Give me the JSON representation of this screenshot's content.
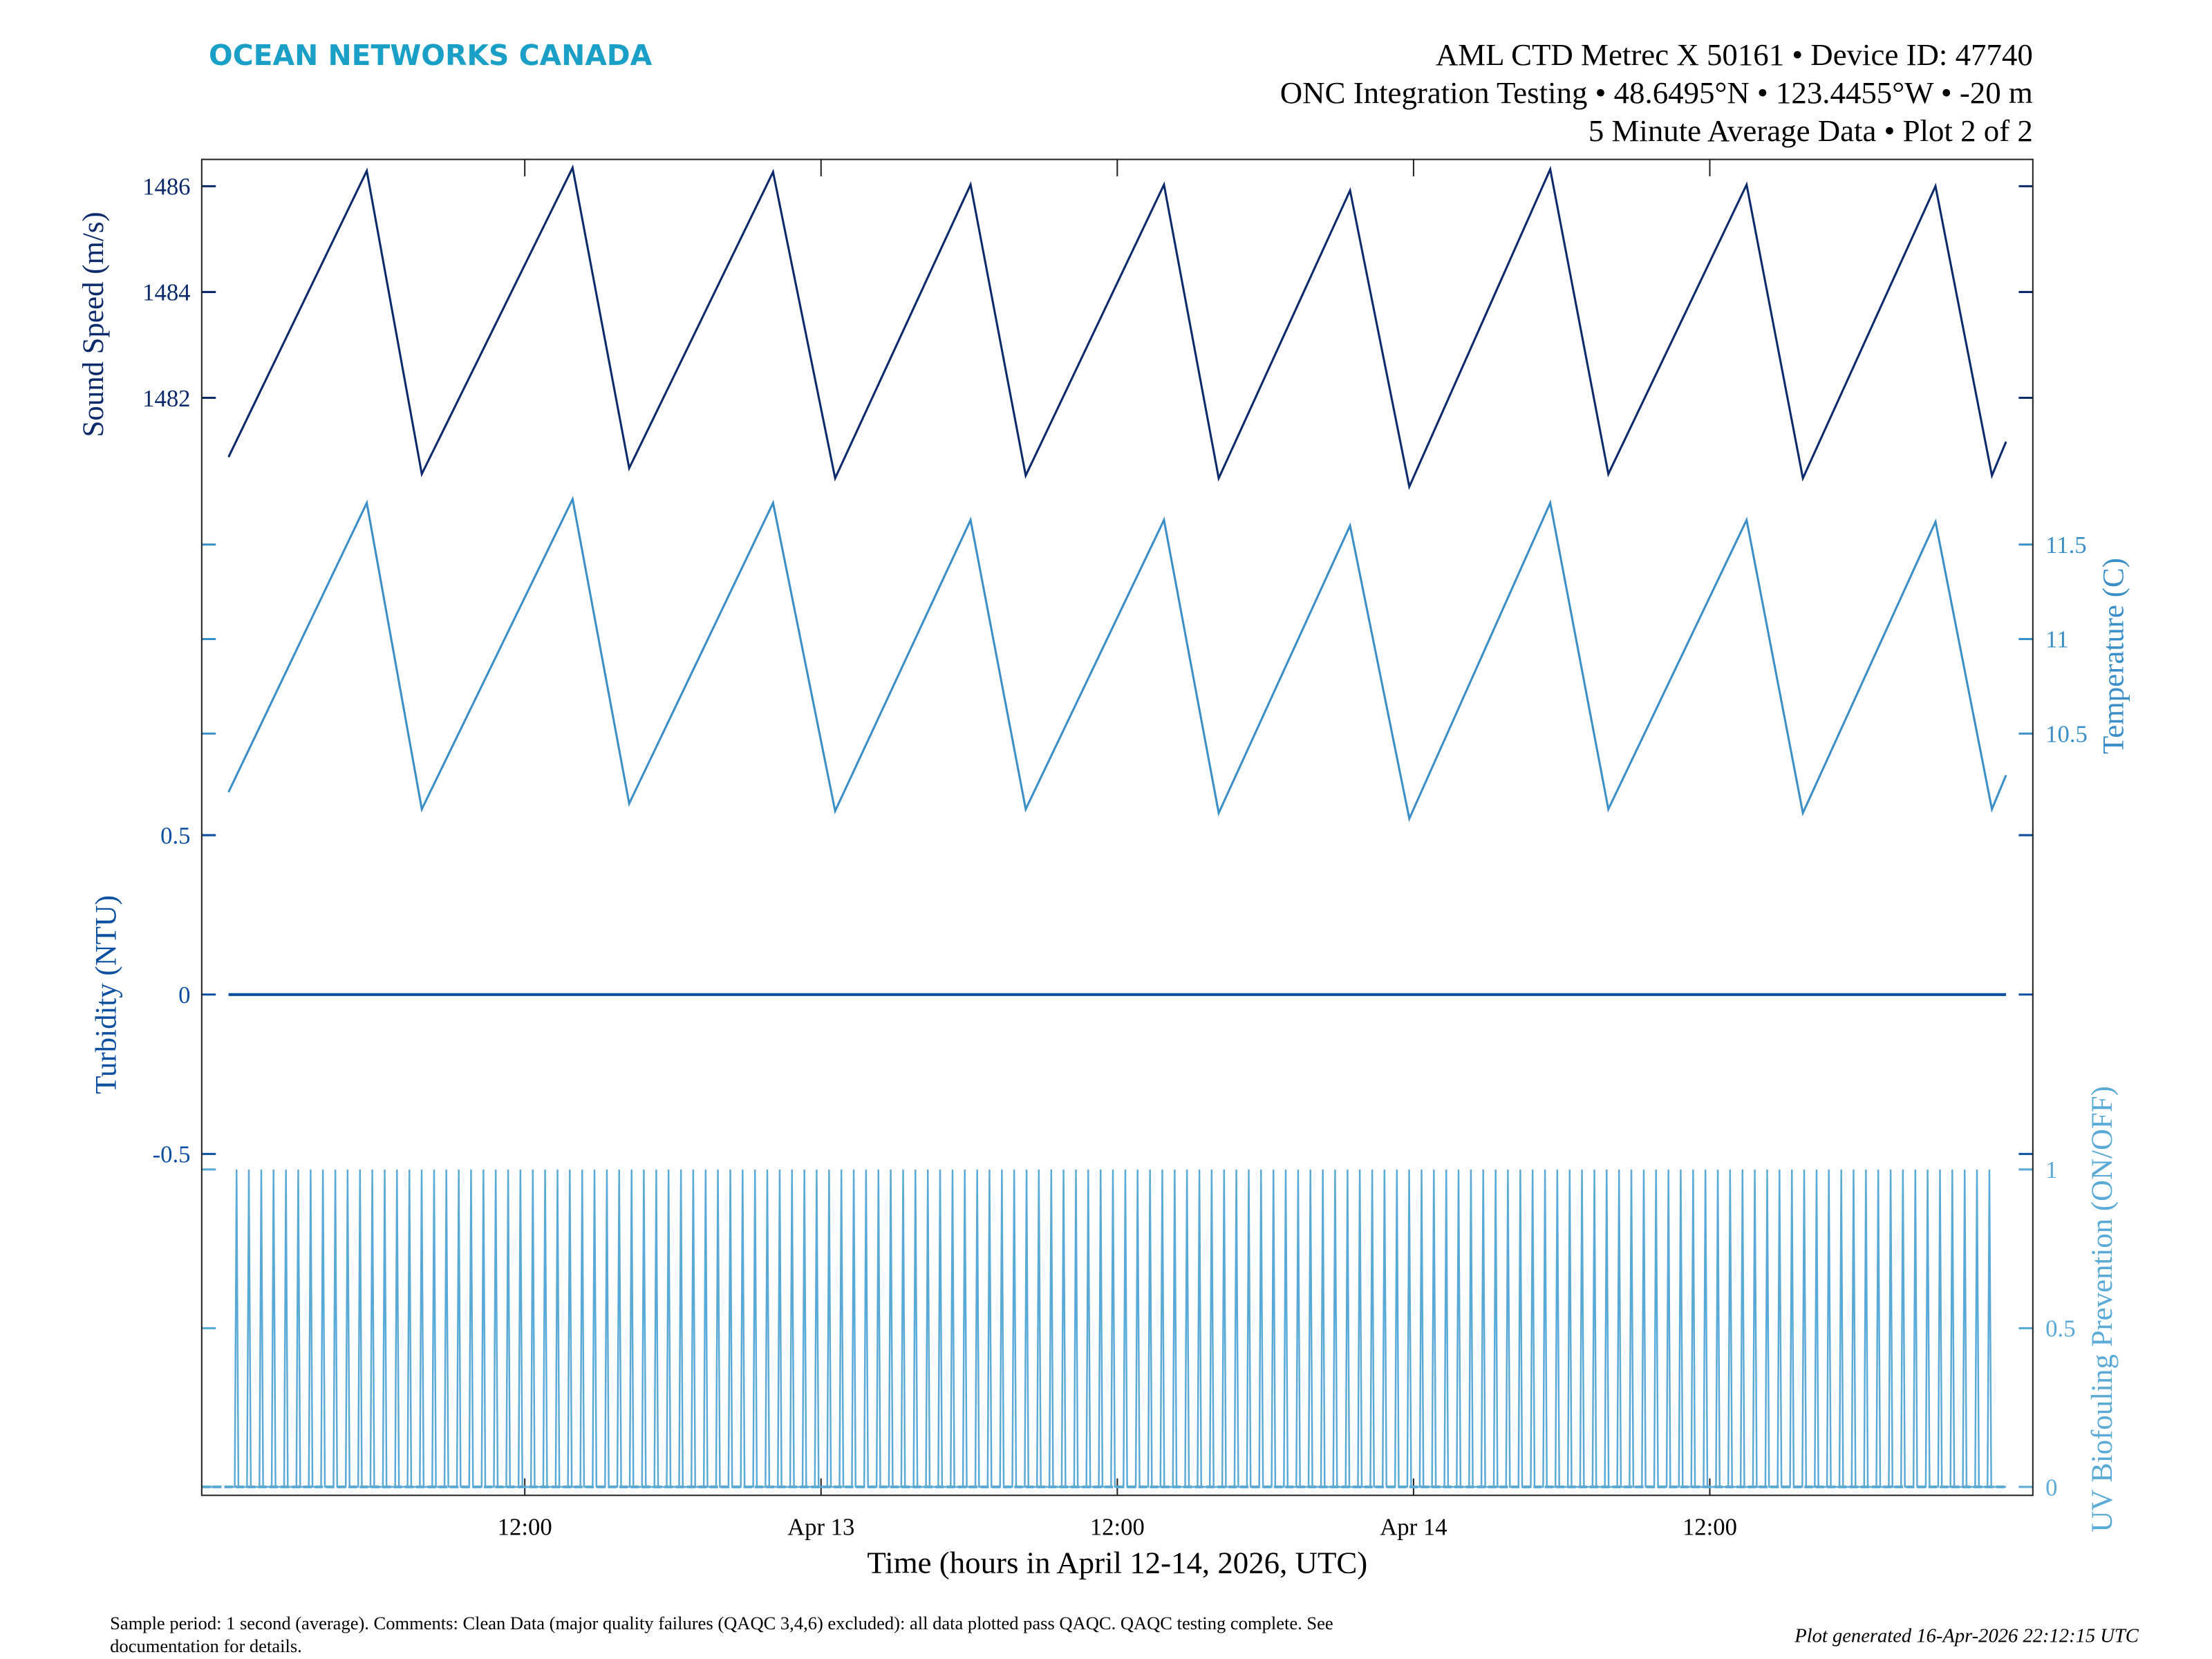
{
  "header": {
    "logo": "OCEAN NETWORKS CANADA",
    "line1": "AML CTD Metrec X 50161 • Device ID: 47740",
    "line2": "ONC Integration Testing • 48.6495°N • 123.4455°W • -20 m",
    "line3": "5 Minute Average Data • Plot 2 of 2"
  },
  "footer": {
    "comment_line1": "Sample period: 1 second (average). Comments: Clean Data (major quality failures (QAQC 3,4,6) excluded): all data plotted pass QAQC. QAQC testing complete. See",
    "comment_line2": "documentation for details.",
    "generated": "Plot generated 16-Apr-2026 22:12:15 UTC"
  },
  "colors": {
    "logo": "#1a9fc6",
    "sound_speed": "#0b2a6b",
    "temperature": "#3a8fc8",
    "turbidity": "#0b4fa0",
    "uv": "#5aaad8"
  },
  "chart_data": {
    "type": "line",
    "xlabel": "Time (hours in April 12-14, 2026, UTC)",
    "x_unit": "hours since 2026-04-12 00:00 UTC",
    "xlim": [
      -1.1,
      73.1
    ],
    "x_ticks": [
      {
        "value": 12,
        "label": "12:00"
      },
      {
        "value": 24,
        "label": "Apr 13"
      },
      {
        "value": 36,
        "label": "12:00"
      },
      {
        "value": 48,
        "label": "Apr 14"
      },
      {
        "value": 60,
        "label": "12:00"
      }
    ],
    "panels": [
      {
        "name": "sound-speed",
        "ylabel": "Sound Speed (m/s)",
        "axis_side": "left",
        "ylim": [
          1479.9,
          1486.5
        ],
        "y_ticks": [
          {
            "value": 1482,
            "label": "1482"
          },
          {
            "value": 1484,
            "label": "1484"
          },
          {
            "value": 1486,
            "label": "1486"
          }
        ],
        "x": [
          0,
          5.6,
          7.83,
          13.94,
          16.23,
          22.06,
          24.57,
          30.06,
          32.29,
          37.89,
          40.11,
          45.43,
          47.83,
          53.54,
          55.89,
          61.49,
          63.77,
          69.14,
          71.43,
          72
        ],
        "y": [
          1480.88,
          1486.29,
          1480.56,
          1486.35,
          1480.67,
          1486.27,
          1480.48,
          1486.03,
          1480.53,
          1486.03,
          1480.48,
          1485.92,
          1480.32,
          1486.32,
          1480.56,
          1486.03,
          1480.48,
          1486.0,
          1480.53,
          1481.17
        ]
      },
      {
        "name": "temperature",
        "ylabel": "Temperature (C)",
        "axis_side": "right",
        "ylim": [
          9.95,
          11.99
        ],
        "y_ticks": [
          {
            "value": 10.5,
            "label": "10.5"
          },
          {
            "value": 11,
            "label": "11"
          },
          {
            "value": 11.5,
            "label": "11.5"
          }
        ],
        "x": [
          0,
          5.6,
          7.83,
          13.94,
          16.23,
          22.06,
          24.57,
          30.06,
          32.29,
          37.89,
          40.11,
          45.43,
          47.83,
          53.54,
          55.89,
          61.49,
          63.77,
          69.14,
          71.43,
          72
        ],
        "y": [
          10.19,
          11.72,
          10.1,
          11.74,
          10.13,
          11.72,
          10.09,
          11.63,
          10.1,
          11.63,
          10.08,
          11.6,
          10.05,
          11.72,
          10.1,
          11.63,
          10.08,
          11.62,
          10.1,
          10.28
        ]
      },
      {
        "name": "turbidity",
        "ylabel": "Turbidity (NTU)",
        "axis_side": "left",
        "ylim": [
          -0.55,
          0.55
        ],
        "y_ticks": [
          {
            "value": -0.5,
            "label": "-0.5"
          },
          {
            "value": 0,
            "label": "0"
          },
          {
            "value": 0.5,
            "label": "0.5"
          }
        ],
        "x": [
          0,
          72
        ],
        "y": [
          0,
          0
        ]
      },
      {
        "name": "uv-biofouling",
        "ylabel": "UV Biofouling Prevention (ON/OFF)",
        "axis_side": "right",
        "ylim": [
          -0.02,
          1.02
        ],
        "y_ticks": [
          {
            "value": 0,
            "label": "0"
          },
          {
            "value": 0.5,
            "label": "0.5"
          },
          {
            "value": 1,
            "label": "1"
          }
        ],
        "pulse_period_hours": 0.5,
        "pulse_start_hours": 0.25,
        "pulse_end_hours": 71.5,
        "on_value": 1,
        "off_value": 0
      }
    ]
  }
}
